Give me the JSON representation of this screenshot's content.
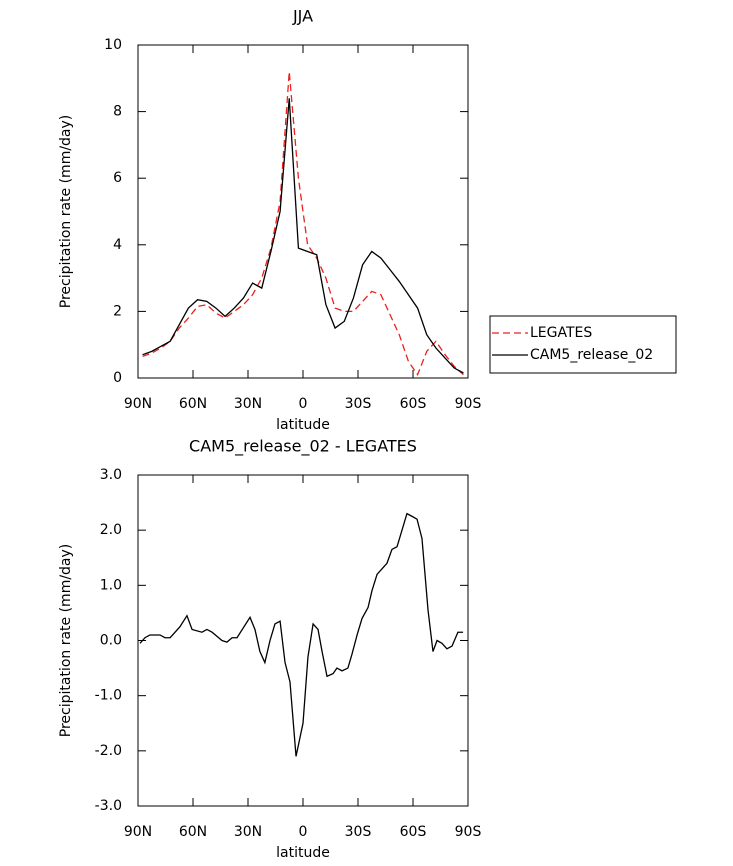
{
  "chart_data": [
    {
      "type": "line",
      "title": "JJA",
      "xlabel": "latitude",
      "ylabel": "Precipitation rate (mm/day)",
      "x": [
        87.5,
        82.5,
        77.5,
        72.5,
        67.5,
        62.5,
        57.5,
        52.5,
        47.5,
        42.5,
        37.5,
        32.5,
        27.5,
        22.5,
        17.5,
        12.5,
        7.5,
        2.5,
        -2.5,
        -7.5,
        -12.5,
        -17.5,
        -22.5,
        -27.5,
        -32.5,
        -37.5,
        -42.5,
        -47.5,
        -52.5,
        -57.5,
        -62.5,
        -67.5,
        -72.5,
        -77.5,
        -82.5,
        -87.5
      ],
      "series": [
        {
          "name": "LEGATES",
          "color": "#e8221f",
          "linestyle": "dashed",
          "values": [
            0.65,
            0.75,
            0.9,
            1.1,
            1.5,
            1.8,
            2.15,
            2.2,
            1.95,
            1.8,
            2.0,
            2.2,
            2.5,
            3.0,
            3.9,
            5.3,
            9.2,
            6.0,
            4.0,
            3.6,
            3.0,
            2.1,
            2.0,
            2.0,
            2.3,
            2.6,
            2.5,
            1.9,
            1.3,
            0.5,
            0.1,
            0.8,
            1.1,
            0.7,
            0.35,
            0.1
          ]
        },
        {
          "name": "CAM5_release_02",
          "color": "#000000",
          "linestyle": "solid",
          "values": [
            0.7,
            0.8,
            0.95,
            1.1,
            1.6,
            2.1,
            2.35,
            2.3,
            2.1,
            1.85,
            2.1,
            2.4,
            2.85,
            2.7,
            3.8,
            5.0,
            8.4,
            3.9,
            3.8,
            3.7,
            2.2,
            1.5,
            1.7,
            2.4,
            3.4,
            3.8,
            3.6,
            3.25,
            2.9,
            2.5,
            2.1,
            1.3,
            0.9,
            0.6,
            0.3,
            0.15
          ]
        }
      ],
      "xlim": [
        90,
        -90
      ],
      "xticks": [
        {
          "value": 90,
          "label": "90N"
        },
        {
          "value": 60,
          "label": "60N"
        },
        {
          "value": 30,
          "label": "30N"
        },
        0,
        {
          "value": -30,
          "label": "30S"
        },
        {
          "value": -60,
          "label": "60S"
        },
        {
          "value": -90,
          "label": "90S"
        }
      ],
      "ylim": [
        0,
        10
      ],
      "yticks": [
        0,
        2,
        4,
        6,
        8,
        10
      ],
      "legend": "outside right"
    },
    {
      "type": "line",
      "title": "CAM5_release_02 - LEGATES",
      "xlabel": "latitude",
      "ylabel": "Precipitation rate (mm/day)",
      "x": [
        88.9,
        86.2,
        83.5,
        78,
        75.3,
        72.5,
        67.1,
        63.3,
        60.5,
        55.1,
        52.4,
        49.6,
        44.2,
        41.5,
        38.7,
        36,
        28.9,
        26.2,
        23.5,
        20.8,
        18,
        15.3,
        12.5,
        9.8,
        7.1,
        3.8,
        0,
        -2.7,
        -5.5,
        -8.2,
        -10.4,
        -13.1,
        -16.4,
        -18.5,
        -21.3,
        -24.5,
        -26.7,
        -29.5,
        -32.2,
        -35.5,
        -37.6,
        -40.4,
        -43.1,
        -45.8,
        -48.5,
        -51.3,
        -54,
        -56.7,
        -59.5,
        -62.2,
        -64.9,
        -68.2,
        -70.9,
        -73.1,
        -75.8,
        -78.5,
        -81.3,
        -84.5,
        -87.3
      ],
      "values": [
        -0.05,
        0.05,
        0.1,
        0.1,
        0.05,
        0.05,
        0.25,
        0.45,
        0.2,
        0.15,
        0.2,
        0.15,
        0.0,
        -0.03,
        0.05,
        0.05,
        0.42,
        0.2,
        -0.2,
        -0.4,
        0.0,
        0.3,
        0.35,
        -0.4,
        -0.75,
        -2.1,
        -1.5,
        -0.3,
        0.3,
        0.2,
        -0.2,
        -0.65,
        -0.6,
        -0.5,
        -0.55,
        -0.5,
        -0.25,
        0.1,
        0.4,
        0.6,
        0.9,
        1.2,
        1.3,
        1.4,
        1.65,
        1.7,
        2.0,
        2.3,
        2.25,
        2.2,
        1.85,
        0.55,
        -0.2,
        0.0,
        -0.05,
        -0.15,
        -0.1,
        0.15,
        0.15
      ],
      "color": "#000000",
      "xlim": [
        90,
        -90
      ],
      "xticks": [
        {
          "value": 90,
          "label": "90N"
        },
        {
          "value": 60,
          "label": "60N"
        },
        {
          "value": 30,
          "label": "30N"
        },
        0,
        {
          "value": -30,
          "label": "30S"
        },
        {
          "value": -60,
          "label": "60S"
        },
        {
          "value": -90,
          "label": "90S"
        }
      ],
      "ylim": [
        -3,
        3
      ],
      "yticks": [
        {
          "value": -3,
          "label": "-3.0"
        },
        {
          "value": -2,
          "label": "-2.0"
        },
        {
          "value": -1,
          "label": "-1.0"
        },
        {
          "value": 0,
          "label": "0.0"
        },
        {
          "value": 1,
          "label": "1.0"
        },
        {
          "value": 2,
          "label": "2.0"
        },
        {
          "value": 3,
          "label": "3.0"
        }
      ]
    }
  ]
}
